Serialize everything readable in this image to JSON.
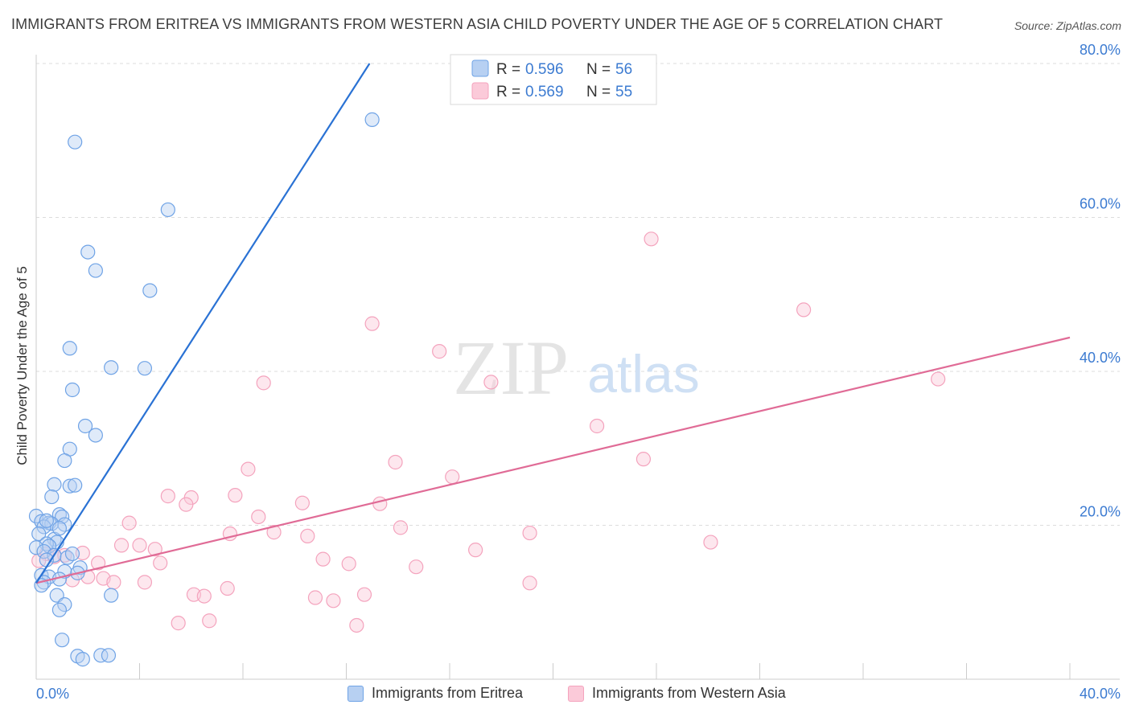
{
  "header": {
    "title": "IMMIGRANTS FROM ERITREA VS IMMIGRANTS FROM WESTERN ASIA CHILD POVERTY UNDER THE AGE OF 5 CORRELATION CHART",
    "source": "Source: ZipAtlas.com"
  },
  "watermark": {
    "zip": "ZIP",
    "atlas": "atlas"
  },
  "legend_top": {
    "rows": [
      {
        "r_label": "R =",
        "r_value": "0.596",
        "n_label": "N =",
        "n_value": "56"
      },
      {
        "r_label": "R =",
        "r_value": "0.569",
        "n_label": "N =",
        "n_value": "55"
      }
    ]
  },
  "chart_data": {
    "type": "scatter",
    "ylabel": "Child Poverty Under the Age of 5",
    "xlim": [
      0,
      40
    ],
    "ylim": [
      0,
      80
    ],
    "x_ticks": [
      "0.0%",
      "40.0%"
    ],
    "y_ticks": [
      {
        "value": 20,
        "label": "20.0%"
      },
      {
        "value": 40,
        "label": "40.0%"
      },
      {
        "value": 60,
        "label": "60.0%"
      },
      {
        "value": 80,
        "label": "80.0%"
      }
    ],
    "grid": true,
    "legend_position": "top-center",
    "colors": {
      "eritrea": "#6fa3e6",
      "eritrea_line": "#2a72d4",
      "western_asia": "#f4a3bd",
      "western_asia_line": "#e06b96",
      "axis_text": "#3c7bd1"
    },
    "series": [
      {
        "name": "Immigrants from Eritrea",
        "stat_r": 0.596,
        "stat_n": 56,
        "trend": {
          "x": [
            0,
            12.9
          ],
          "y": [
            12.5,
            80
          ]
        },
        "points": [
          [
            1.5,
            69.8
          ],
          [
            13.0,
            72.7
          ],
          [
            5.1,
            61.0
          ],
          [
            2.0,
            55.5
          ],
          [
            2.3,
            53.1
          ],
          [
            4.4,
            50.5
          ],
          [
            1.3,
            43.0
          ],
          [
            2.9,
            40.5
          ],
          [
            4.2,
            40.4
          ],
          [
            1.4,
            37.6
          ],
          [
            1.9,
            32.9
          ],
          [
            2.3,
            31.7
          ],
          [
            1.3,
            29.9
          ],
          [
            1.1,
            28.4
          ],
          [
            0.7,
            25.3
          ],
          [
            1.3,
            25.1
          ],
          [
            1.5,
            25.2
          ],
          [
            0.6,
            23.7
          ],
          [
            0.0,
            21.2
          ],
          [
            0.9,
            21.4
          ],
          [
            1.0,
            21.1
          ],
          [
            0.2,
            20.5
          ],
          [
            0.5,
            20.3
          ],
          [
            0.6,
            20.2
          ],
          [
            1.1,
            20.1
          ],
          [
            0.3,
            19.8
          ],
          [
            0.1,
            18.9
          ],
          [
            0.7,
            18.2
          ],
          [
            0.8,
            17.8
          ],
          [
            0.4,
            17.6
          ],
          [
            0.5,
            17.3
          ],
          [
            0.0,
            17.1
          ],
          [
            0.3,
            16.6
          ],
          [
            0.7,
            16.1
          ],
          [
            1.2,
            15.8
          ],
          [
            0.4,
            15.5
          ],
          [
            1.7,
            14.5
          ],
          [
            1.1,
            14.0
          ],
          [
            0.2,
            13.5
          ],
          [
            0.5,
            13.3
          ],
          [
            0.9,
            13.0
          ],
          [
            0.3,
            12.6
          ],
          [
            0.2,
            12.2
          ],
          [
            0.8,
            10.9
          ],
          [
            2.9,
            10.9
          ],
          [
            1.1,
            9.7
          ],
          [
            0.9,
            9.0
          ],
          [
            1.0,
            5.1
          ],
          [
            1.6,
            3.0
          ],
          [
            1.8,
            2.6
          ],
          [
            2.5,
            3.1
          ],
          [
            2.8,
            3.1
          ],
          [
            1.4,
            16.3
          ],
          [
            0.9,
            19.6
          ],
          [
            0.4,
            20.6
          ],
          [
            1.6,
            13.8
          ]
        ]
      },
      {
        "name": "Immigrants from Western Asia",
        "stat_r": 0.569,
        "stat_n": 55,
        "trend": {
          "x": [
            0,
            40
          ],
          "y": [
            12.5,
            44.4
          ]
        },
        "points": [
          [
            23.8,
            57.2
          ],
          [
            29.7,
            48.0
          ],
          [
            13.0,
            46.2
          ],
          [
            15.6,
            42.6
          ],
          [
            8.8,
            38.5
          ],
          [
            17.6,
            38.6
          ],
          [
            34.9,
            39.0
          ],
          [
            21.7,
            32.9
          ],
          [
            8.2,
            27.3
          ],
          [
            13.9,
            28.2
          ],
          [
            16.1,
            26.3
          ],
          [
            23.5,
            28.6
          ],
          [
            5.1,
            23.8
          ],
          [
            6.0,
            23.6
          ],
          [
            7.7,
            23.9
          ],
          [
            5.8,
            22.7
          ],
          [
            10.3,
            22.9
          ],
          [
            13.3,
            22.8
          ],
          [
            8.6,
            21.1
          ],
          [
            3.6,
            20.3
          ],
          [
            14.1,
            19.7
          ],
          [
            7.5,
            18.9
          ],
          [
            9.2,
            19.1
          ],
          [
            10.5,
            18.6
          ],
          [
            19.1,
            19.0
          ],
          [
            3.3,
            17.4
          ],
          [
            4.0,
            17.4
          ],
          [
            4.6,
            16.9
          ],
          [
            26.1,
            17.8
          ],
          [
            0.4,
            16.3
          ],
          [
            0.7,
            15.9
          ],
          [
            1.1,
            16.1
          ],
          [
            1.8,
            16.4
          ],
          [
            17.0,
            16.8
          ],
          [
            11.1,
            15.6
          ],
          [
            2.4,
            15.1
          ],
          [
            4.8,
            15.1
          ],
          [
            12.1,
            15.0
          ],
          [
            14.7,
            14.6
          ],
          [
            0.1,
            15.4
          ],
          [
            1.4,
            12.9
          ],
          [
            2.0,
            13.3
          ],
          [
            2.6,
            13.1
          ],
          [
            3.0,
            12.6
          ],
          [
            4.2,
            12.6
          ],
          [
            7.4,
            11.8
          ],
          [
            6.1,
            11.0
          ],
          [
            6.5,
            10.8
          ],
          [
            10.8,
            10.6
          ],
          [
            11.5,
            10.2
          ],
          [
            12.7,
            11.0
          ],
          [
            19.1,
            12.5
          ],
          [
            5.5,
            7.3
          ],
          [
            6.7,
            7.6
          ],
          [
            12.4,
            7.0
          ]
        ]
      }
    ]
  },
  "legend_bottom": {
    "items": [
      {
        "label": "Immigrants from Eritrea"
      },
      {
        "label": "Immigrants from Western Asia"
      }
    ]
  }
}
